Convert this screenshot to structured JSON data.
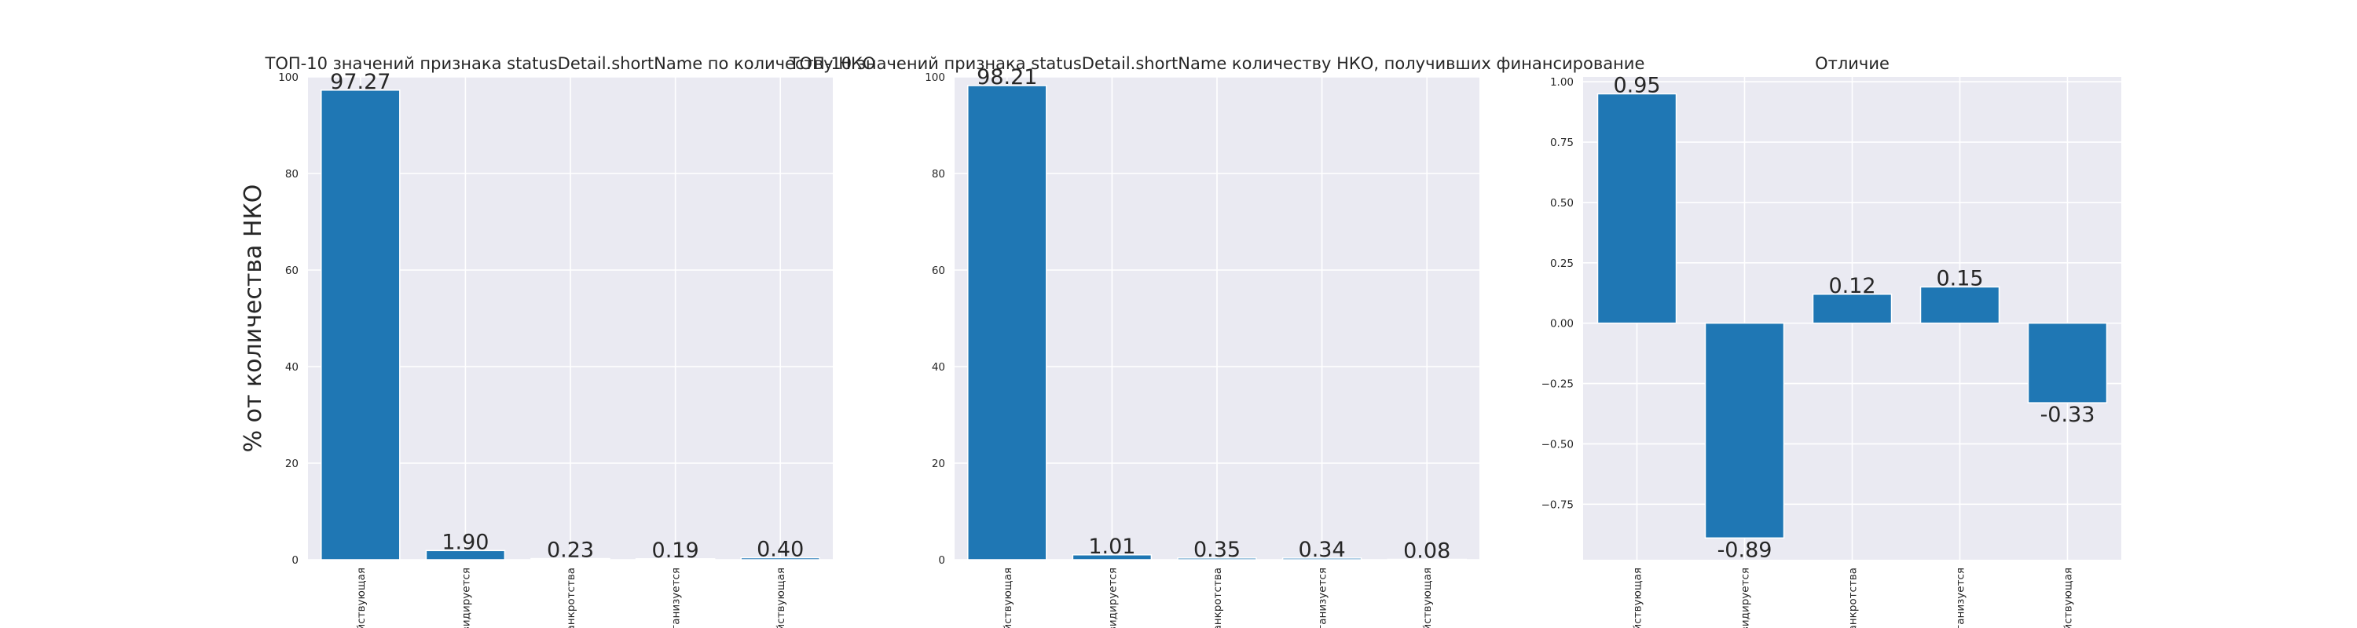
{
  "chart_data": [
    {
      "type": "bar",
      "title": "ТОП-10 значений признака statusDetail.shortName по количеству НКО",
      "ylabel": "% от количества НКО",
      "ylim": [
        0,
        100
      ],
      "yticks": [
        0,
        20,
        40,
        60,
        80,
        100
      ],
      "categories": [
        "ействующая",
        "виквидируется",
        "банкротства",
        "организуется",
        "ействующая"
      ],
      "values": [
        97.27,
        1.9,
        0.23,
        0.19,
        0.4
      ],
      "data_labels": [
        "97.27",
        "1.90",
        "0.23",
        "0.19",
        "0.40"
      ],
      "grid": true
    },
    {
      "type": "bar",
      "title": "ТОП-10 значений признака statusDetail.shortName количеству НКО, получивших финансирование",
      "ylim": [
        0,
        100
      ],
      "yticks": [
        0,
        20,
        40,
        60,
        80,
        100
      ],
      "categories": [
        "ействующая",
        "виквидируется",
        "банкротства",
        "организуется",
        "ействующая"
      ],
      "values": [
        98.21,
        1.01,
        0.35,
        0.34,
        0.08
      ],
      "data_labels": [
        "98.21",
        "1.01",
        "0.35",
        "0.34",
        "0.08"
      ],
      "grid": true
    },
    {
      "type": "bar",
      "title": "Отличие",
      "ylim": [
        -0.98,
        1.02
      ],
      "yticks": [
        -0.75,
        -0.5,
        -0.25,
        0.0,
        0.25,
        0.5,
        0.75,
        1.0
      ],
      "ytick_labels": [
        "−0.75",
        "−0.50",
        "−0.25",
        "0.00",
        "0.25",
        "0.50",
        "0.75",
        "1.00"
      ],
      "categories": [
        "ействующая",
        "виквидируется",
        "банкротства",
        "организуется",
        "ействующая"
      ],
      "values": [
        0.95,
        -0.89,
        0.12,
        0.15,
        -0.33
      ],
      "data_labels": [
        "0.95",
        "-0.89",
        "0.12",
        "0.15",
        "-0.33"
      ],
      "grid": true
    }
  ],
  "colors": {
    "bar": "#1f77b4",
    "panel_bg": "#eaeaf2",
    "grid": "#ffffff"
  }
}
